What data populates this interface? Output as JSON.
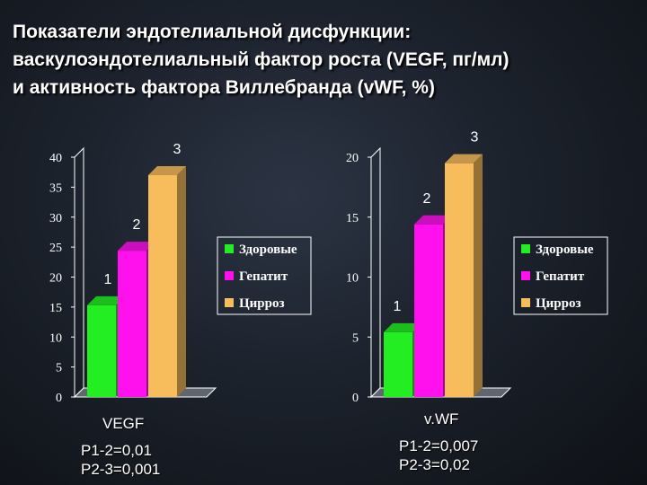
{
  "title_lines": [
    "Показатели эндотелиальной дисфункции:",
    "васкулоэндотелиальный фактор роста (VEGF, пг/мл)",
    "и активность фактора  Виллебранда (vWF, %)"
  ],
  "colors": {
    "healthy": "#22ee22",
    "hepatitis": "#ff11ee",
    "cirrhosis": "#f7bd5c"
  },
  "chart_data": [
    {
      "type": "bar",
      "name": "VEGF",
      "categories": [
        "Здоровые",
        "Гепатит",
        "Цирроз"
      ],
      "values": [
        15.3,
        24.4,
        37.0
      ],
      "bar_labels": [
        "1",
        "2",
        "3"
      ],
      "ylim": [
        0,
        40
      ],
      "yticks": [
        0,
        5,
        10,
        15,
        20,
        25,
        30,
        35,
        40
      ],
      "legend": [
        "Здоровые",
        "Гепатит",
        "Цирроз"
      ],
      "legend_position": "right",
      "grid": false
    },
    {
      "type": "bar",
      "name": "vWF",
      "categories": [
        "Здоровые",
        "Гепатит",
        "Цирроз"
      ],
      "values": [
        5.4,
        14.4,
        19.5
      ],
      "bar_labels": [
        "1",
        "2",
        "3"
      ],
      "ylim": [
        0,
        20
      ],
      "yticks": [
        0,
        5,
        10,
        15,
        20
      ],
      "legend": [
        "Здоровые",
        "Гепатит",
        "Цирроз"
      ],
      "legend_position": "right",
      "grid": false
    }
  ],
  "captions": [
    {
      "name": "VEGF",
      "lines": [
        "P1-2=0,01",
        "P2-3=0,001"
      ]
    },
    {
      "name": "v.WF",
      "lines": [
        "P1-2=0,007",
        "P2-3=0,02"
      ]
    }
  ]
}
